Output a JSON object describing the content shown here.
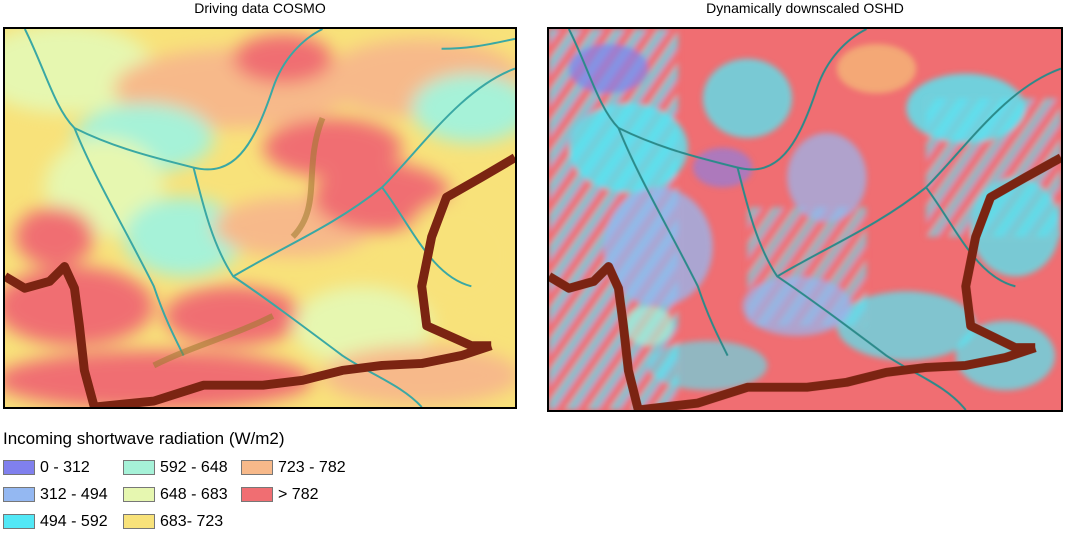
{
  "maps": {
    "left_title": "Driving data COSMO",
    "right_title": "Dynamically downscaled OSHD"
  },
  "legend": {
    "title": "Incoming shortwave radiation (W/m2)",
    "items": [
      {
        "label": "0 - 312",
        "color": "#8080ee"
      },
      {
        "label": "312 - 494",
        "color": "#94b8f2"
      },
      {
        "label": "494 - 592",
        "color": "#52e8f6"
      },
      {
        "label": "592 - 648",
        "color": "#a6f2d8"
      },
      {
        "label": "648 - 683",
        "color": "#e6f7b0"
      },
      {
        "label": "683- 723",
        "color": "#f8e27a"
      },
      {
        "label": "723 - 782",
        "color": "#f7b98a"
      },
      {
        "label": "> 782",
        "color": "#f06e72"
      }
    ]
  }
}
